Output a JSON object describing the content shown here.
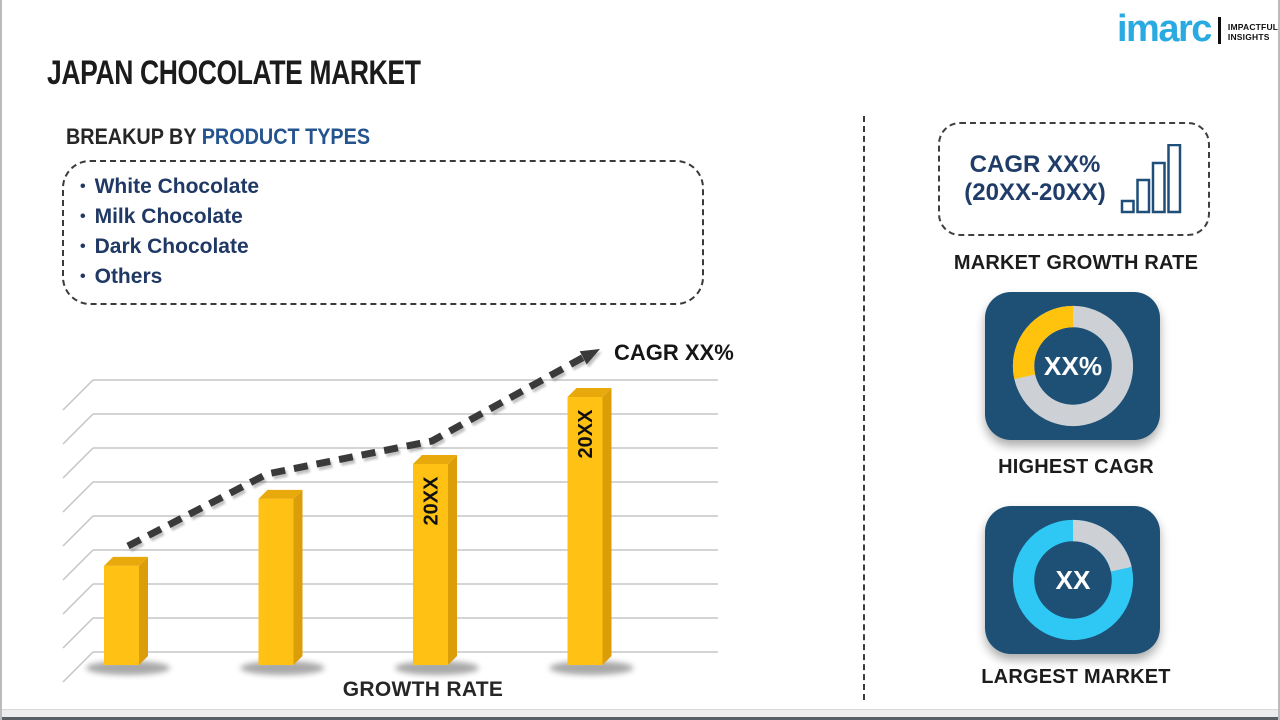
{
  "page": {
    "title": "JAPAN CHOCOLATE MARKET"
  },
  "logo": {
    "brand": "imarc",
    "tagline_line1": "IMPACTFUL",
    "tagline_line2": "INSIGHTS",
    "brand_color": "#29ABE2"
  },
  "breakup": {
    "heading_prefix": "BREAKUP BY ",
    "heading_highlight": "PRODUCT TYPES",
    "items": [
      "White Chocolate",
      "Milk Chocolate",
      "Dark Chocolate",
      "Others"
    ]
  },
  "chart_data": {
    "type": "bar",
    "categories": [
      "",
      "",
      "20XX",
      "20XX"
    ],
    "values": [
      37,
      62,
      75,
      100
    ],
    "value_scale": "relative bar height, percent of tallest bar (no numeric axis shown)",
    "title": "",
    "xlabel": "GROWTH RATE",
    "ylabel": "",
    "gridlines": 9,
    "trend_label": "CAGR XX%",
    "trend_style": "dashed rising arrow",
    "bar_color": "#FFC113",
    "bar_side_color": "#DB9E08",
    "bar_top_color": "#E8A90C",
    "grid_color": "#c6c6c6",
    "trend_color": "#3a3a3a"
  },
  "right_panel": {
    "cagr_box": {
      "line1": "CAGR XX%",
      "line2": "(20XX-20XX)"
    },
    "market_growth_rate_label": "MARKET GROWTH RATE",
    "highest_cagr": {
      "value": "XX%",
      "label": "HIGHEST CAGR",
      "arc_percent": 28.5,
      "arc_color": "#FFC20D",
      "ring_color": "#CDD1D5",
      "card_color": "#1E5076"
    },
    "largest_market": {
      "value": "XX",
      "label": "LARGEST MARKET",
      "gray_arc_percent": 21.5,
      "ring_color": "#2FC7F4",
      "gray_color": "#CDD1D5",
      "card_color": "#1E5076"
    }
  }
}
